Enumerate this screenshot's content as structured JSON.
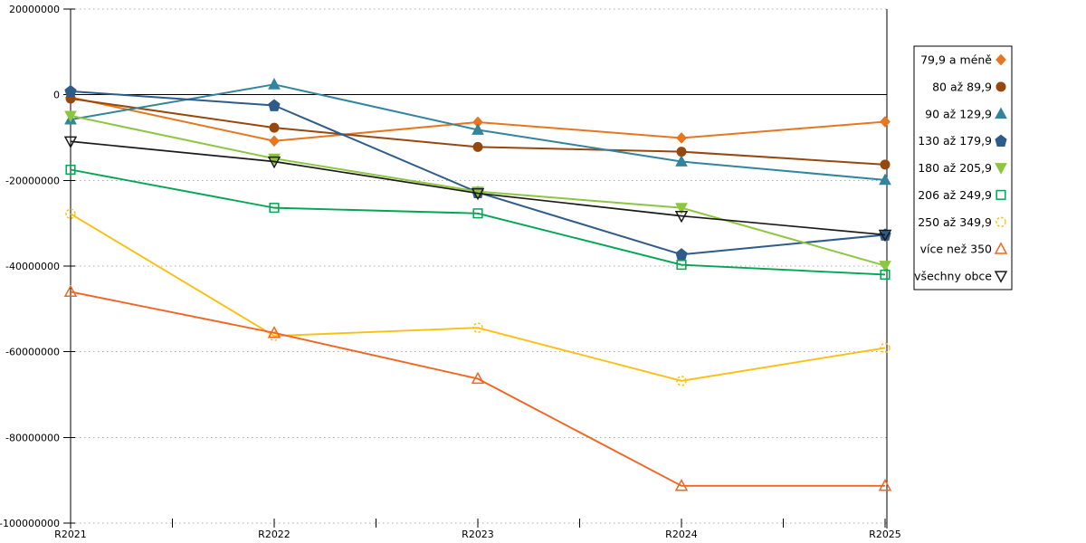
{
  "chart_data": {
    "type": "line",
    "title": "",
    "xlabel": "",
    "ylabel": "",
    "categories": [
      "R2021",
      "R2022",
      "R2023",
      "R2024",
      "R2025"
    ],
    "ylim": [
      -100000000,
      20000000
    ],
    "ytick_step": 20000000,
    "ytick_labels": [
      "20000000",
      "0",
      "-20000000",
      "-40000000",
      "-60000000",
      "-80000000",
      "-100000000"
    ],
    "grid": "horizontal-dotted",
    "zero_line": true,
    "legend_position": "right-outside",
    "colors": {
      "axis": "#000000",
      "grid": "#ADADAD",
      "background": "#FFFFFF",
      "legend_border": "#000000"
    },
    "series": [
      {
        "name": "79,9 a méně",
        "color": "#E8761E",
        "marker": "diamond",
        "fill": "filled",
        "values": [
          -600000,
          -10800000,
          -6400000,
          -10100000,
          -6300000
        ]
      },
      {
        "name": "80 až 89,9",
        "color": "#97480F",
        "marker": "circle",
        "fill": "filled",
        "values": [
          -900000,
          -7700000,
          -12200000,
          -13300000,
          -16300000
        ]
      },
      {
        "name": "90 až 129,9",
        "color": "#31859C",
        "marker": "triangle-up",
        "fill": "filled",
        "values": [
          -5800000,
          2400000,
          -8200000,
          -15600000,
          -19900000
        ]
      },
      {
        "name": "130 až 179,9",
        "color": "#2E5C8A",
        "marker": "pentagon",
        "fill": "filled",
        "values": [
          800000,
          -2500000,
          -22800000,
          -37300000,
          -32700000
        ]
      },
      {
        "name": "180 až 205,9",
        "color": "#8DC63F",
        "marker": "triangle-down",
        "fill": "filled",
        "values": [
          -4900000,
          -14900000,
          -22600000,
          -26400000,
          -39900000
        ]
      },
      {
        "name": "206 až 249,9",
        "color": "#00A651",
        "marker": "square",
        "fill": "hollow",
        "values": [
          -17500000,
          -26400000,
          -27700000,
          -39700000,
          -42000000
        ]
      },
      {
        "name": "250 až 349,9",
        "color": "#FBC011",
        "marker": "circle",
        "fill": "hollow-dashed",
        "values": [
          -27800000,
          -56300000,
          -54400000,
          -66800000,
          -59100000
        ]
      },
      {
        "name": "více než 350",
        "color": "#F26522",
        "marker": "triangle-up",
        "fill": "hollow",
        "values": [
          -46000000,
          -55600000,
          -66300000,
          -91300000,
          -91300000
        ]
      },
      {
        "name": "všechny obce",
        "color": "#1A1A1A",
        "marker": "triangle-down",
        "fill": "hollow",
        "values": [
          -10900000,
          -15600000,
          -23000000,
          -28300000,
          -32700000
        ]
      }
    ]
  }
}
